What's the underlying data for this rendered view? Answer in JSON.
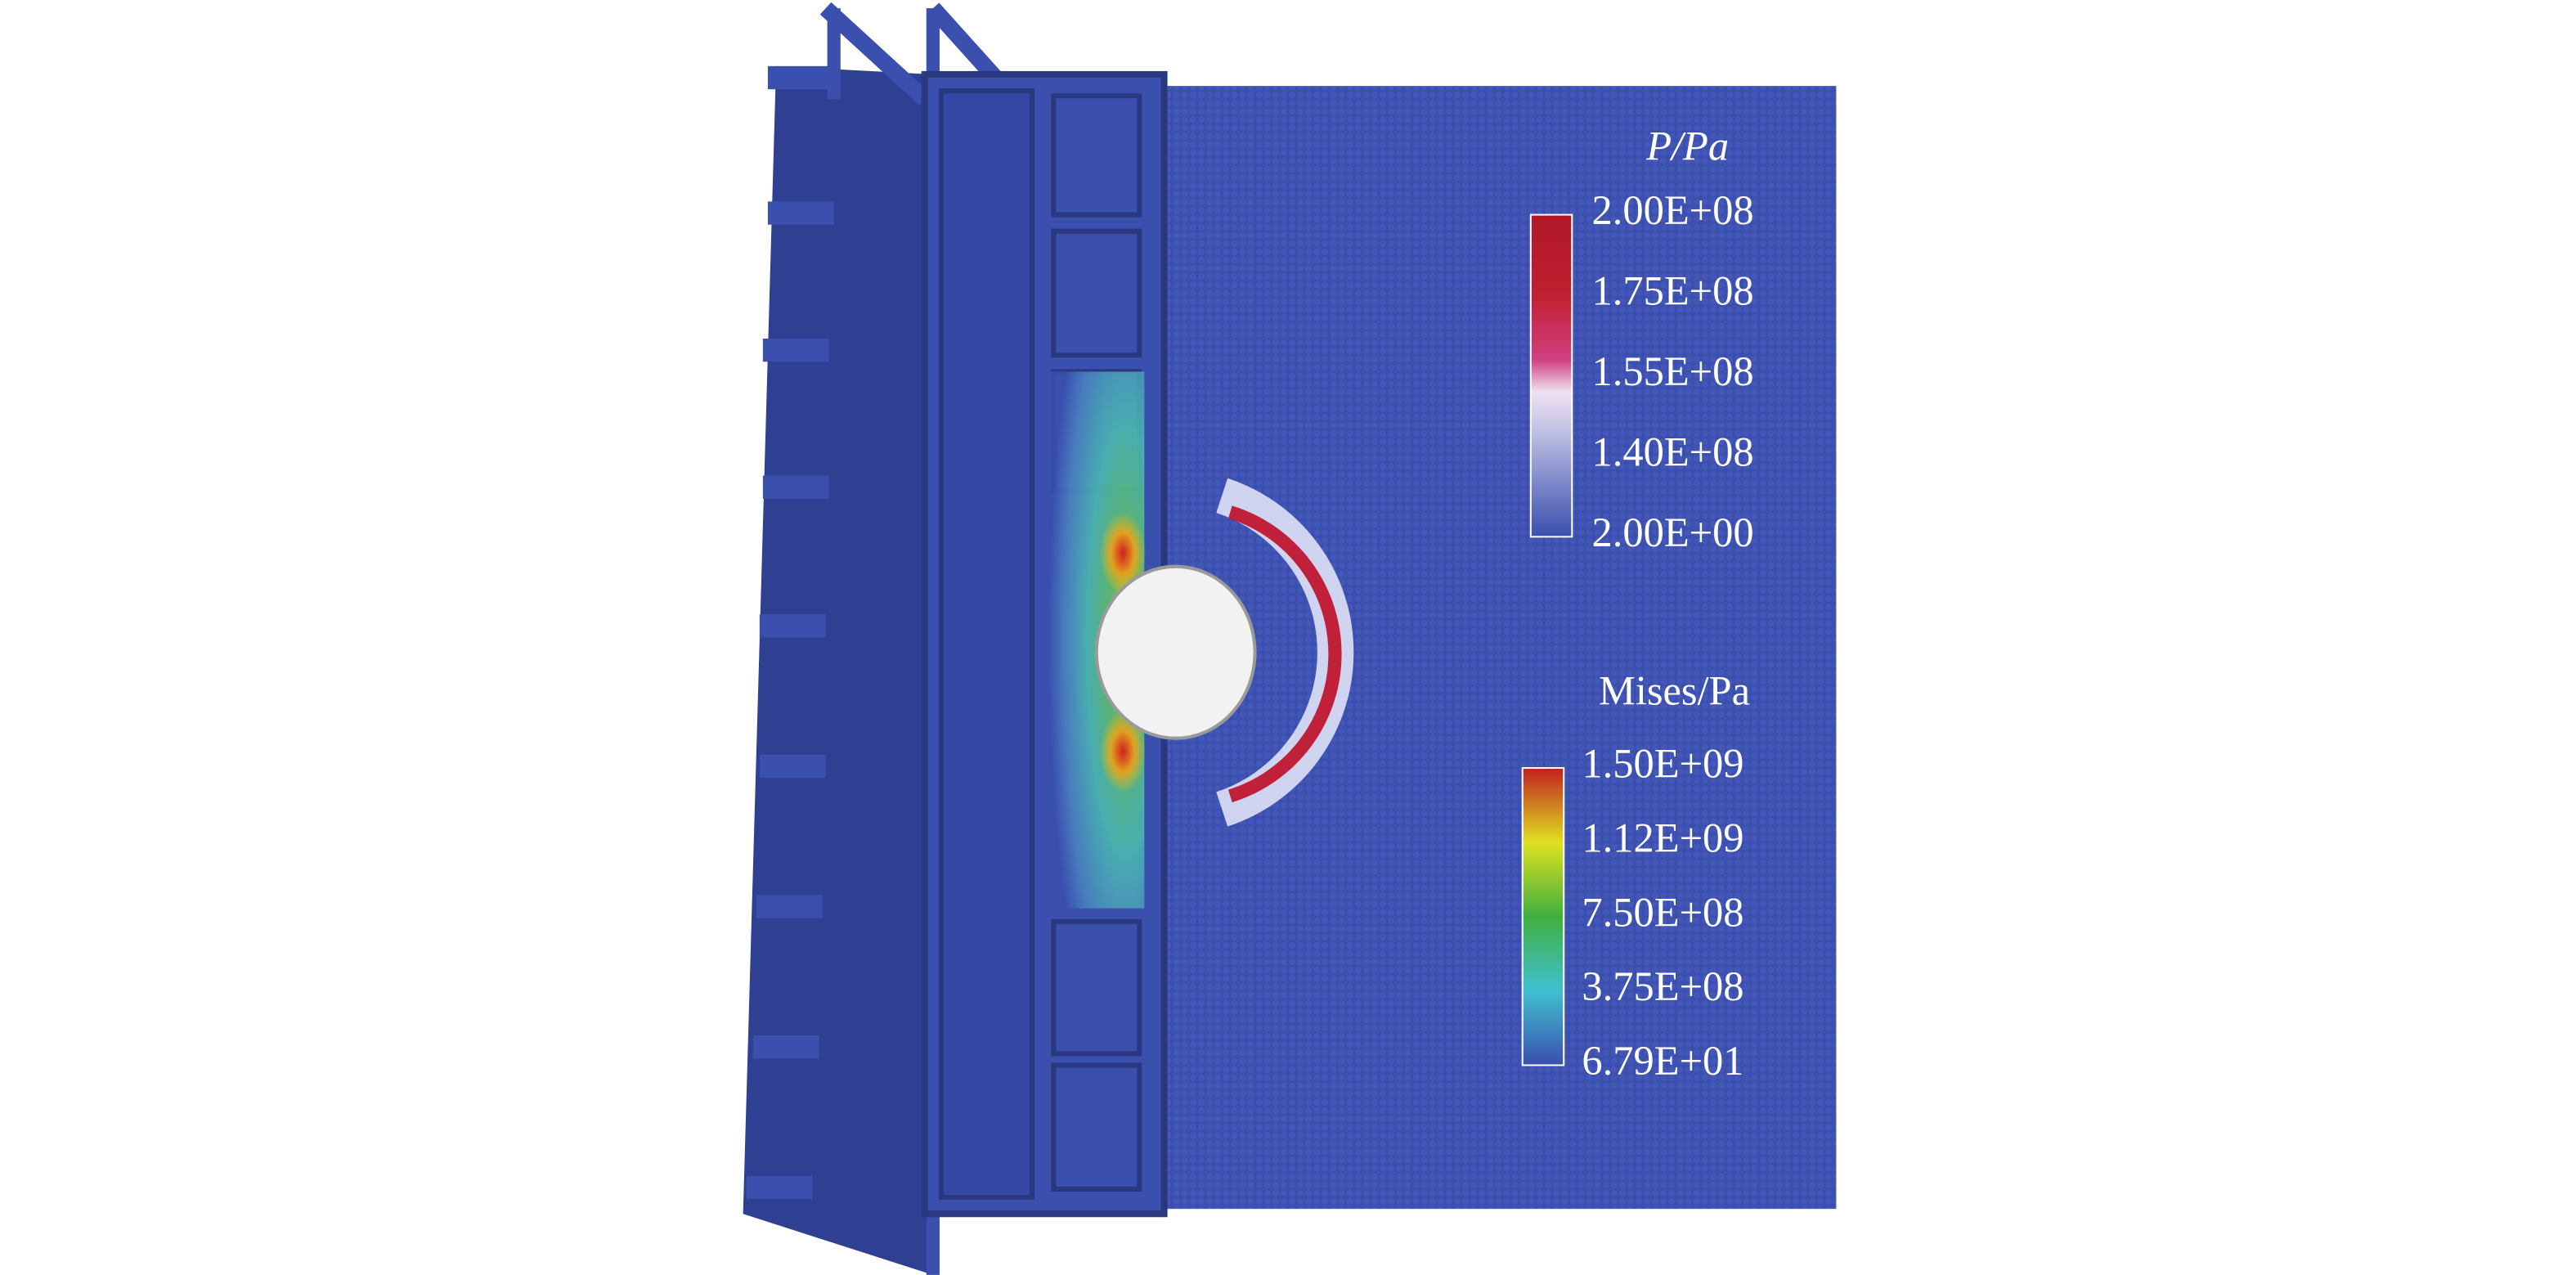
{
  "colorbars": [
    {
      "title": "P/Pa",
      "labels": [
        "2.00E+08",
        "1.75E+08",
        "1.55E+08",
        "1.40E+08",
        "2.00E+00"
      ]
    },
    {
      "title": "Mises/Pa",
      "labels": [
        "1.50E+09",
        "1.12E+09",
        "7.50E+08",
        "3.75E+08",
        "6.79E+01"
      ]
    }
  ]
}
